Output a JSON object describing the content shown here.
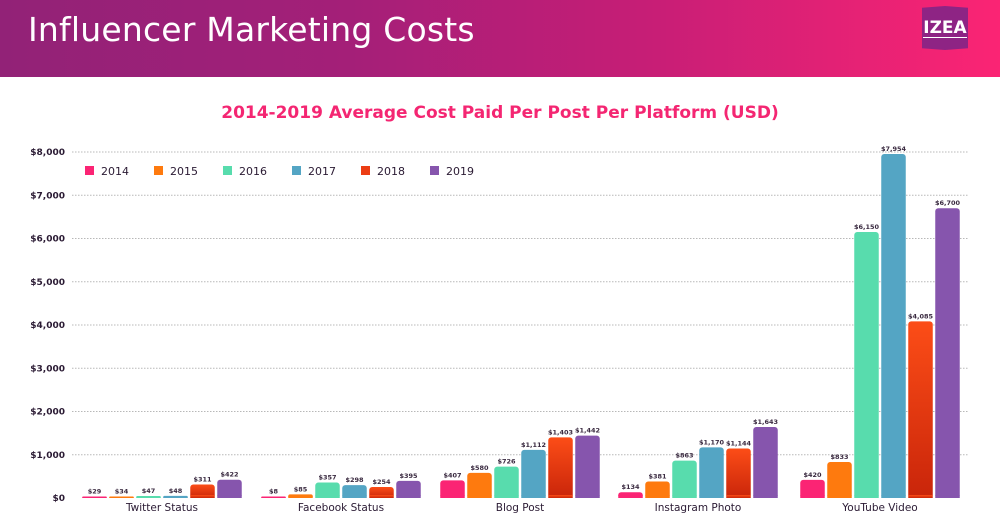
{
  "header": {
    "title": "Influencer Marketing Costs",
    "logo_text": "IZEA",
    "gradient_start": "#922277",
    "gradient_end": "#fb2474"
  },
  "chart_data": {
    "type": "bar",
    "title": "2014-2019 Average Cost Paid Per Post Per Platform (USD)",
    "xlabel": "",
    "ylabel": "",
    "ylim": [
      0,
      8000
    ],
    "yticks": [
      0,
      1000,
      2000,
      3000,
      4000,
      5000,
      6000,
      7000,
      8000
    ],
    "ytick_labels": [
      "$0",
      "$1,000",
      "$2,000",
      "$3,000",
      "$4,000",
      "$5,000",
      "$6,000",
      "$7,000",
      "$8,000"
    ],
    "grid": true,
    "legend_position": "top-left",
    "categories": [
      "Twitter Status",
      "Facebook Status",
      "Blog Post",
      "Instagram Photo",
      "YouTube Video"
    ],
    "series": [
      {
        "name": "2014",
        "color": "#fb2474",
        "values": [
          29,
          8,
          407,
          134,
          420
        ],
        "labels": [
          "$29",
          "$8",
          "$407",
          "$134",
          "$420"
        ]
      },
      {
        "name": "2015",
        "color": "#fe7a0e",
        "values": [
          34,
          85,
          580,
          381,
          833
        ],
        "labels": [
          "$34",
          "$85",
          "$580",
          "$381",
          "$833"
        ]
      },
      {
        "name": "2016",
        "color": "#58dcad",
        "values": [
          47,
          357,
          726,
          863,
          6150
        ],
        "labels": [
          "$47",
          "$357",
          "$726",
          "$863",
          "$6,150"
        ]
      },
      {
        "name": "2017",
        "color": "#54a5c4",
        "values": [
          48,
          298,
          1112,
          1170,
          7954
        ],
        "labels": [
          "$48",
          "$298",
          "$1,112",
          "$1,170",
          "$7,954"
        ]
      },
      {
        "name": "2018",
        "color": "#ec3d14",
        "values": [
          311,
          254,
          1403,
          1144,
          4085
        ],
        "labels": [
          "$311",
          "$254",
          "$1,403",
          "$1,144",
          "$4,085"
        ]
      },
      {
        "name": "2019",
        "color": "#8655ad",
        "values": [
          422,
          395,
          1442,
          1643,
          6700
        ],
        "labels": [
          "$422",
          "$395",
          "$1,442",
          "$1,643",
          "$6,700"
        ]
      }
    ]
  }
}
